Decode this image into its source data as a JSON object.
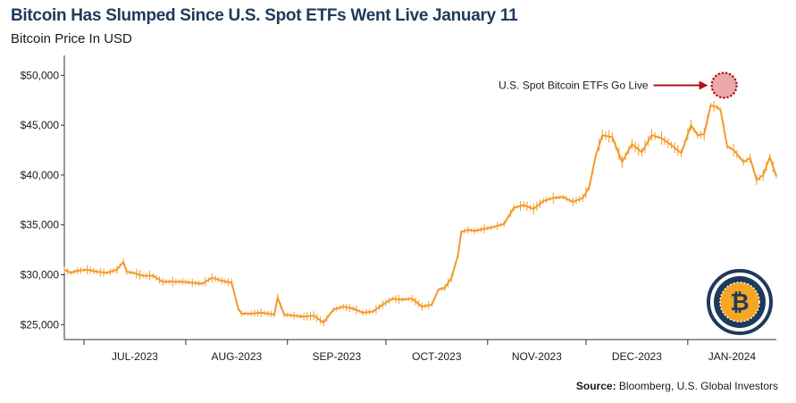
{
  "header": {
    "title": "Bitcoin Has Slumped Since U.S. Spot ETFs Went Live January 11",
    "subtitle": "Bitcoin Price In USD"
  },
  "footer": {
    "source_label": "Source:",
    "source_text": " Bloomberg, U.S. Global Investors"
  },
  "logo": {
    "icon": "bitcoin-logo-icon",
    "glyph": "₿"
  },
  "chart_data": {
    "type": "line",
    "title": "Bitcoin Has Slumped Since U.S. Spot ETFs Went Live January 11",
    "ylabel": "Bitcoin Price In USD",
    "xlabel": "",
    "x_start": "2023-06-25",
    "x_end": "2024-01-28",
    "ylim": [
      23500,
      52000
    ],
    "y_ticks": [
      25000,
      30000,
      35000,
      40000,
      45000,
      50000
    ],
    "y_tick_labels": [
      "$25,000",
      "$30,000",
      "$35,000",
      "$40,000",
      "$45,000",
      "$50,000"
    ],
    "x_ticks": [
      "2023-07-01",
      "2023-08-01",
      "2023-09-01",
      "2023-10-01",
      "2023-11-01",
      "2023-12-01",
      "2024-01-01"
    ],
    "x_tick_labels": [
      "JUL-2023",
      "AUG-2023",
      "SEP-2023",
      "OCT-2023",
      "NOV-2023",
      "DEC-2023",
      "JAN-2024"
    ],
    "grid": false,
    "line_color": "#f39a2a",
    "series": [
      {
        "x": [
          "2023-06-25",
          "2023-06-27",
          "2023-06-29",
          "2023-07-02",
          "2023-07-05",
          "2023-07-08",
          "2023-07-11",
          "2023-07-13",
          "2023-07-14",
          "2023-07-16",
          "2023-07-19",
          "2023-07-22",
          "2023-07-25",
          "2023-07-26",
          "2023-07-28",
          "2023-07-31",
          "2023-08-03",
          "2023-08-06",
          "2023-08-09",
          "2023-08-12",
          "2023-08-15",
          "2023-08-17",
          "2023-08-18",
          "2023-08-21",
          "2023-08-24",
          "2023-08-28",
          "2023-08-29",
          "2023-08-31",
          "2023-09-03",
          "2023-09-06",
          "2023-09-09",
          "2023-09-12",
          "2023-09-15",
          "2023-09-18",
          "2023-09-21",
          "2023-09-24",
          "2023-09-27",
          "2023-09-30",
          "2023-10-03",
          "2023-10-06",
          "2023-10-09",
          "2023-10-12",
          "2023-10-15",
          "2023-10-17",
          "2023-10-19",
          "2023-10-21",
          "2023-10-23",
          "2023-10-24",
          "2023-10-26",
          "2023-10-28",
          "2023-10-31",
          "2023-11-03",
          "2023-11-06",
          "2023-11-09",
          "2023-11-12",
          "2023-11-15",
          "2023-11-18",
          "2023-11-21",
          "2023-11-24",
          "2023-11-27",
          "2023-11-30",
          "2023-12-02",
          "2023-12-04",
          "2023-12-06",
          "2023-12-09",
          "2023-12-12",
          "2023-12-15",
          "2023-12-18",
          "2023-12-21",
          "2023-12-24",
          "2023-12-27",
          "2023-12-30",
          "2024-01-02",
          "2024-01-04",
          "2024-01-06",
          "2024-01-08",
          "2024-01-10",
          "2024-01-11",
          "2024-01-13",
          "2024-01-15",
          "2024-01-18",
          "2024-01-20",
          "2024-01-22",
          "2024-01-24",
          "2024-01-26",
          "2024-01-28"
        ],
        "y": [
          30500,
          30200,
          30400,
          30500,
          30300,
          30200,
          30500,
          31300,
          30300,
          30200,
          29900,
          29900,
          29300,
          29300,
          29300,
          29300,
          29200,
          29100,
          29700,
          29400,
          29200,
          26600,
          26100,
          26100,
          26200,
          26000,
          27700,
          26000,
          25900,
          25800,
          25900,
          25200,
          26500,
          26800,
          26600,
          26200,
          26300,
          27000,
          27600,
          27500,
          27600,
          26800,
          27000,
          28500,
          28700,
          29700,
          32000,
          34300,
          34500,
          34400,
          34600,
          34800,
          35100,
          36700,
          37000,
          36600,
          37400,
          37700,
          37800,
          37300,
          37700,
          38800,
          42000,
          44000,
          43800,
          41300,
          43100,
          42300,
          44000,
          43700,
          43000,
          42200,
          45000,
          44000,
          44100,
          47000,
          46800,
          46500,
          42900,
          42500,
          41300,
          41700,
          39500,
          40000,
          41800,
          39900
        ]
      }
    ],
    "annotation": {
      "text": "U.S. Spot Bitcoin ETFs Go Live",
      "x": "2024-01-11",
      "y": 49000
    }
  }
}
